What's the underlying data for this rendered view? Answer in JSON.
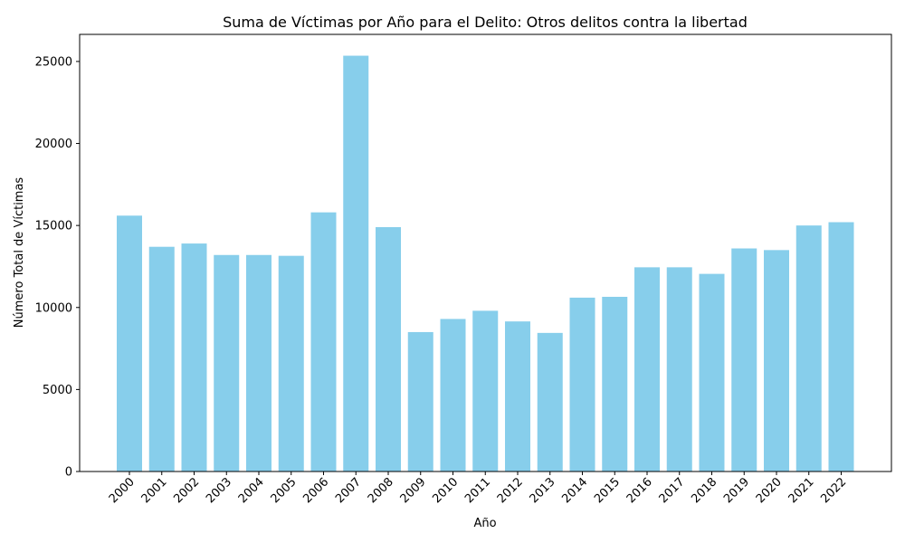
{
  "chart_data": {
    "type": "bar",
    "title": "Suma de Víctimas por Año para el Delito: Otros delitos contra la libertad",
    "xlabel": "Año",
    "ylabel": "Número Total de Víctimas",
    "categories": [
      "2000",
      "2001",
      "2002",
      "2003",
      "2004",
      "2005",
      "2006",
      "2007",
      "2008",
      "2009",
      "2010",
      "2011",
      "2012",
      "2013",
      "2014",
      "2015",
      "2016",
      "2017",
      "2018",
      "2019",
      "2020",
      "2021",
      "2022"
    ],
    "values": [
      15600,
      13700,
      13900,
      13200,
      13200,
      13150,
      15800,
      25350,
      14900,
      8500,
      9300,
      9800,
      9150,
      8450,
      10600,
      10650,
      12450,
      12450,
      12050,
      13600,
      13500,
      15000,
      15200
    ],
    "yticks": [
      "0",
      "5000",
      "10000",
      "15000",
      "20000",
      "25000"
    ],
    "ylim": [
      0,
      26650
    ],
    "bar_color": "#87ceeb",
    "grid": false,
    "legend": "none"
  }
}
